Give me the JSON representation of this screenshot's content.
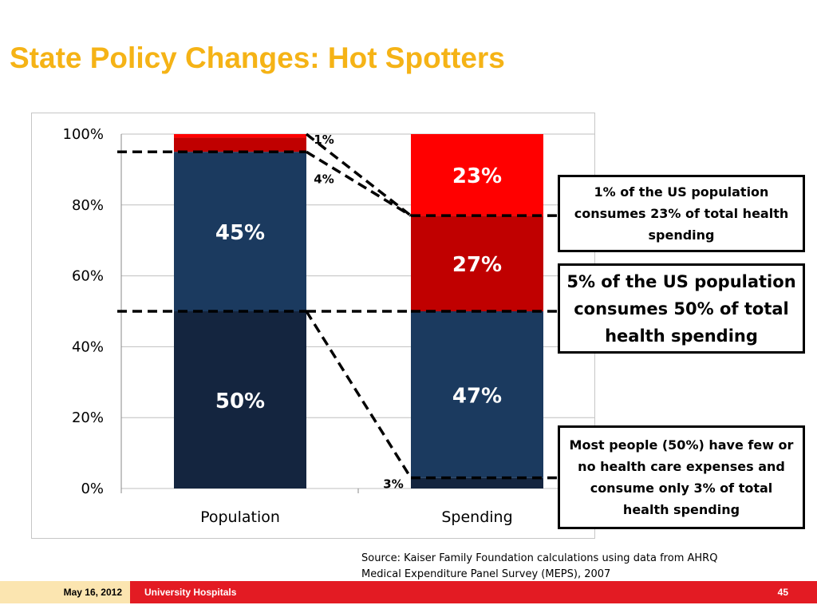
{
  "slide": {
    "title": "State Policy Changes: Hot Spotters",
    "source_line1": "Source: Kaiser Family Foundation calculations using data from AHRQ",
    "source_line2": "Medical Expenditure Panel Survey (MEPS), 2007",
    "footer_date": "May 16, 2012",
    "footer_org": "University Hospitals",
    "page_number": "45"
  },
  "callouts": {
    "top": "1% of the US population consumes 23% of total health spending",
    "middle": "5% of the US population consumes 50% of total health spending",
    "bottom": "Most people (50%) have few or no health care expenses and consume only 3% of total health spending"
  },
  "colors": {
    "dark_navy": "#14253f",
    "navy": "#1b3a5f",
    "dark_red": "#c00000",
    "red": "#ff0000",
    "title_gold": "#f5b316",
    "footer_red": "#e31b23"
  },
  "chart_data": {
    "type": "bar",
    "stacked": true,
    "categories": [
      "Population",
      "Spending"
    ],
    "series": [
      {
        "values": [
          50,
          3
        ],
        "labels": [
          "50%",
          "3%"
        ],
        "color": "#14253f"
      },
      {
        "values": [
          45,
          47
        ],
        "labels": [
          "45%",
          "47%"
        ],
        "color": "#1b3a5f"
      },
      {
        "values": [
          4,
          27
        ],
        "labels": [
          "4%",
          "27%"
        ],
        "color": "#c00000"
      },
      {
        "values": [
          1,
          23
        ],
        "labels": [
          "1%",
          "23%"
        ],
        "color": "#ff0000"
      }
    ],
    "ylim": [
      0,
      100
    ],
    "yticks": [
      0,
      20,
      40,
      60,
      80,
      100
    ],
    "ytick_labels": [
      "0%",
      "20%",
      "40%",
      "60%",
      "80%",
      "100%"
    ],
    "grid": true,
    "connector_lines": [
      {
        "from_percent": 95,
        "to_percent": 77
      },
      {
        "from_percent": 50,
        "to_percent": 50
      },
      {
        "from_percent": 50,
        "to_percent": 3
      }
    ]
  }
}
